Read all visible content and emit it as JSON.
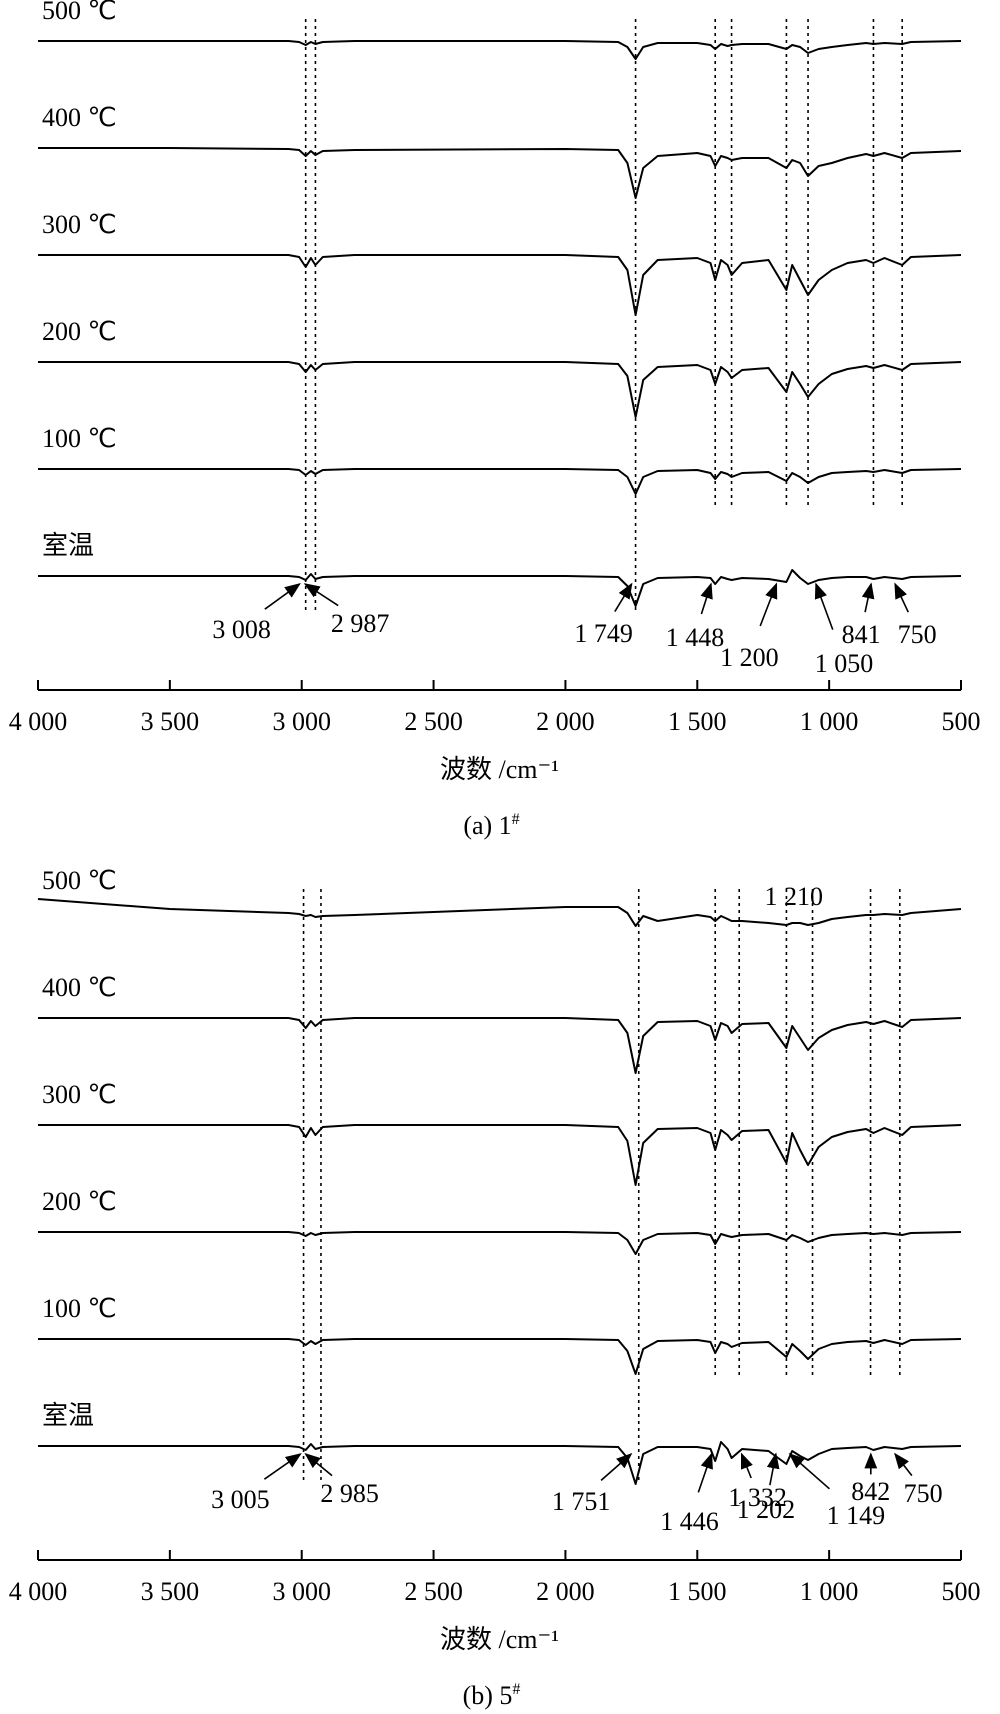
{
  "chart_data": [
    {
      "type": "line",
      "caption": "(a) 1",
      "caption_sup": "#",
      "xlabel": "波数 /cm⁻¹",
      "xlim": [
        4000,
        500
      ],
      "xticks": [
        {
          "value": 4000,
          "label": "4 000"
        },
        {
          "value": 3500,
          "label": "3 500"
        },
        {
          "value": 3000,
          "label": "3 000"
        },
        {
          "value": 2500,
          "label": "2 500"
        },
        {
          "value": 2000,
          "label": "2 000"
        },
        {
          "value": 1500,
          "label": "1 500"
        },
        {
          "value": 1000,
          "label": "1 000"
        },
        500
      ],
      "color": "#000000",
      "x": [
        4000,
        3500,
        3050,
        3010,
        2985,
        2965,
        2948,
        2920,
        2800,
        2000,
        1800,
        1765,
        1734,
        1705,
        1650,
        1500,
        1450,
        1432,
        1410,
        1385,
        1370,
        1330,
        1230,
        1162,
        1140,
        1110,
        1080,
        1040,
        990,
        930,
        860,
        832,
        790,
        723,
        690,
        500
      ],
      "series": [
        {
          "name": "500 ℃",
          "values": [
            0,
            0,
            0,
            -1,
            -4,
            -1,
            -3,
            -1,
            0,
            0,
            -1,
            -6,
            -18,
            -6,
            -2,
            -2,
            -4,
            -8,
            -3,
            -5,
            -4,
            -3,
            -3,
            -8,
            -4,
            -6,
            -12,
            -8,
            -6,
            -4,
            -2,
            -3,
            -2,
            -3,
            -1,
            0
          ]
        },
        {
          "name": "400 ℃",
          "values": [
            0,
            0,
            -1,
            -2,
            -8,
            -3,
            -7,
            -3,
            -2,
            -1,
            -2,
            -15,
            -50,
            -20,
            -8,
            -5,
            -8,
            -18,
            -8,
            -10,
            -12,
            -10,
            -10,
            -20,
            -12,
            -15,
            -28,
            -18,
            -15,
            -10,
            -6,
            -8,
            -5,
            -10,
            -5,
            -3
          ]
        },
        {
          "name": "300 ℃",
          "values": [
            0,
            0,
            0,
            -2,
            -12,
            -3,
            -10,
            -2,
            0,
            0,
            -2,
            -15,
            -60,
            -20,
            -5,
            -3,
            -8,
            -25,
            -5,
            -10,
            -20,
            -8,
            -5,
            -35,
            -10,
            -25,
            -40,
            -25,
            -15,
            -8,
            -5,
            -8,
            -3,
            -10,
            -2,
            0
          ]
        },
        {
          "name": "200 ℃",
          "values": [
            0,
            0,
            0,
            -2,
            -10,
            -3,
            -8,
            -2,
            0,
            0,
            -2,
            -14,
            -55,
            -18,
            -5,
            -3,
            -8,
            -22,
            -5,
            -10,
            -16,
            -8,
            -6,
            -30,
            -10,
            -22,
            -35,
            -22,
            -12,
            -7,
            -4,
            -6,
            -3,
            -8,
            -2,
            0
          ]
        },
        {
          "name": "100 ℃",
          "values": [
            0,
            0,
            0,
            -1,
            -6,
            -2,
            -5,
            -1,
            0,
            0,
            -1,
            -8,
            -25,
            -8,
            -2,
            -1,
            -4,
            -10,
            -3,
            -5,
            -8,
            -4,
            -3,
            -12,
            -4,
            -8,
            -14,
            -8,
            -4,
            -3,
            -2,
            -3,
            -1,
            -4,
            -1,
            0
          ]
        },
        {
          "name": "室温",
          "values": [
            0,
            0,
            0,
            -1,
            -4,
            2,
            -3,
            -1,
            0,
            0,
            -1,
            -10,
            -30,
            -8,
            -2,
            -1,
            -2,
            -8,
            -1,
            -3,
            -4,
            -2,
            -3,
            -6,
            6,
            -2,
            -8,
            -4,
            -2,
            -1,
            -1,
            -3,
            -1,
            -3,
            -1,
            0
          ]
        }
      ],
      "guides": [
        2985,
        2948,
        1734,
        1432,
        1370,
        1162,
        1080,
        832,
        723
      ],
      "annotations": [
        {
          "label": "3 008",
          "x": 3008
        },
        {
          "label": "2 987",
          "x": 2987
        },
        {
          "label": "1 749",
          "x": 1749
        },
        {
          "label": "1 448",
          "x": 1448
        },
        {
          "label": "1 200",
          "x": 1200
        },
        {
          "label": "1 050",
          "x": 1050
        },
        {
          "label": "841",
          "x": 841
        },
        {
          "label": "750",
          "x": 750
        }
      ]
    },
    {
      "type": "line",
      "caption": "(b) 5",
      "caption_sup": "#",
      "xlabel": "波数 /cm⁻¹",
      "xlim": [
        4000,
        500
      ],
      "xticks": [
        {
          "value": 4000,
          "label": "4 000"
        },
        {
          "value": 3500,
          "label": "3 500"
        },
        {
          "value": 3000,
          "label": "3 000"
        },
        {
          "value": 2500,
          "label": "2 500"
        },
        {
          "value": 2000,
          "label": "2 000"
        },
        {
          "value": 1500,
          "label": "1 500"
        },
        {
          "value": 1000,
          "label": "1 000"
        },
        500
      ],
      "color": "#000000",
      "x": [
        4000,
        3500,
        3050,
        3010,
        2985,
        2965,
        2948,
        2920,
        2800,
        2000,
        1800,
        1765,
        1734,
        1705,
        1650,
        1500,
        1450,
        1432,
        1410,
        1385,
        1370,
        1330,
        1230,
        1162,
        1140,
        1110,
        1080,
        1040,
        990,
        930,
        860,
        832,
        790,
        723,
        690,
        500
      ],
      "series": [
        {
          "name": "500 ℃",
          "values": [
            12,
            2,
            -2,
            -3,
            -5,
            -4,
            -6,
            -5,
            -4,
            4,
            4,
            -2,
            -15,
            -5,
            -10,
            -4,
            -6,
            -10,
            -5,
            -8,
            -10,
            -10,
            -12,
            -14,
            -12,
            -12,
            -14,
            -12,
            -8,
            -6,
            -4,
            -4,
            -3,
            -4,
            -2,
            2
          ]
        },
        {
          "name": "400 ℃",
          "values": [
            0,
            0,
            0,
            -2,
            -10,
            -3,
            -8,
            -2,
            0,
            0,
            -2,
            -15,
            -55,
            -18,
            -4,
            -3,
            -8,
            -22,
            -5,
            -8,
            -15,
            -6,
            -5,
            -30,
            -8,
            -20,
            -32,
            -20,
            -12,
            -7,
            -4,
            -6,
            -3,
            -9,
            -2,
            0
          ]
        },
        {
          "name": "300 ℃",
          "values": [
            0,
            0,
            0,
            -2,
            -12,
            -3,
            -10,
            -2,
            0,
            0,
            -2,
            -16,
            -60,
            -18,
            -4,
            -3,
            -8,
            -25,
            -5,
            -10,
            -15,
            -6,
            -5,
            -38,
            -8,
            -25,
            -40,
            -22,
            -12,
            -7,
            -4,
            -8,
            -3,
            -10,
            -2,
            0
          ]
        },
        {
          "name": "200 ℃",
          "values": [
            0,
            0,
            0,
            -1,
            -4,
            -1,
            -3,
            -1,
            0,
            0,
            -1,
            -8,
            -22,
            -8,
            -2,
            -1,
            -3,
            -12,
            -2,
            -4,
            -5,
            -3,
            -2,
            -8,
            -3,
            -6,
            -10,
            -6,
            -3,
            -2,
            -1,
            -2,
            -1,
            -3,
            -1,
            0
          ]
        },
        {
          "name": "100 ℃",
          "values": [
            0,
            0,
            0,
            -1,
            -6,
            -2,
            -5,
            -1,
            0,
            0,
            -1,
            -12,
            -35,
            -10,
            -2,
            -1,
            -3,
            -14,
            -3,
            -5,
            -8,
            -4,
            -3,
            -18,
            -5,
            -12,
            -20,
            -10,
            -5,
            -3,
            -2,
            -4,
            -1,
            -5,
            -1,
            0
          ]
        },
        {
          "name": "室温",
          "values": [
            0,
            0,
            0,
            -1,
            -4,
            2,
            -3,
            -1,
            0,
            0,
            -1,
            -12,
            -38,
            -8,
            -1,
            -1,
            -3,
            -15,
            4,
            -3,
            -12,
            -3,
            -5,
            -18,
            -5,
            -10,
            -14,
            -8,
            -3,
            -2,
            -1,
            -4,
            -1,
            -3,
            -1,
            0
          ]
        }
      ],
      "guides": [
        2993,
        2927,
        1722,
        1432,
        1341,
        1162,
        1063,
        843,
        732
      ],
      "annotations": [
        {
          "label": "3 005",
          "x": 3005
        },
        {
          "label": "2 985",
          "x": 2985
        },
        {
          "label": "1 751",
          "x": 1751
        },
        {
          "label": "1 446",
          "x": 1446
        },
        {
          "label": "1 332",
          "x": 1332
        },
        {
          "label": "1 202",
          "x": 1202
        },
        {
          "label": "1 149",
          "x": 1149
        },
        {
          "label": "842",
          "x": 842
        },
        {
          "label": "750",
          "x": 750
        }
      ],
      "top_labels": [
        {
          "label": "1 210",
          "x": 1210
        }
      ]
    }
  ]
}
